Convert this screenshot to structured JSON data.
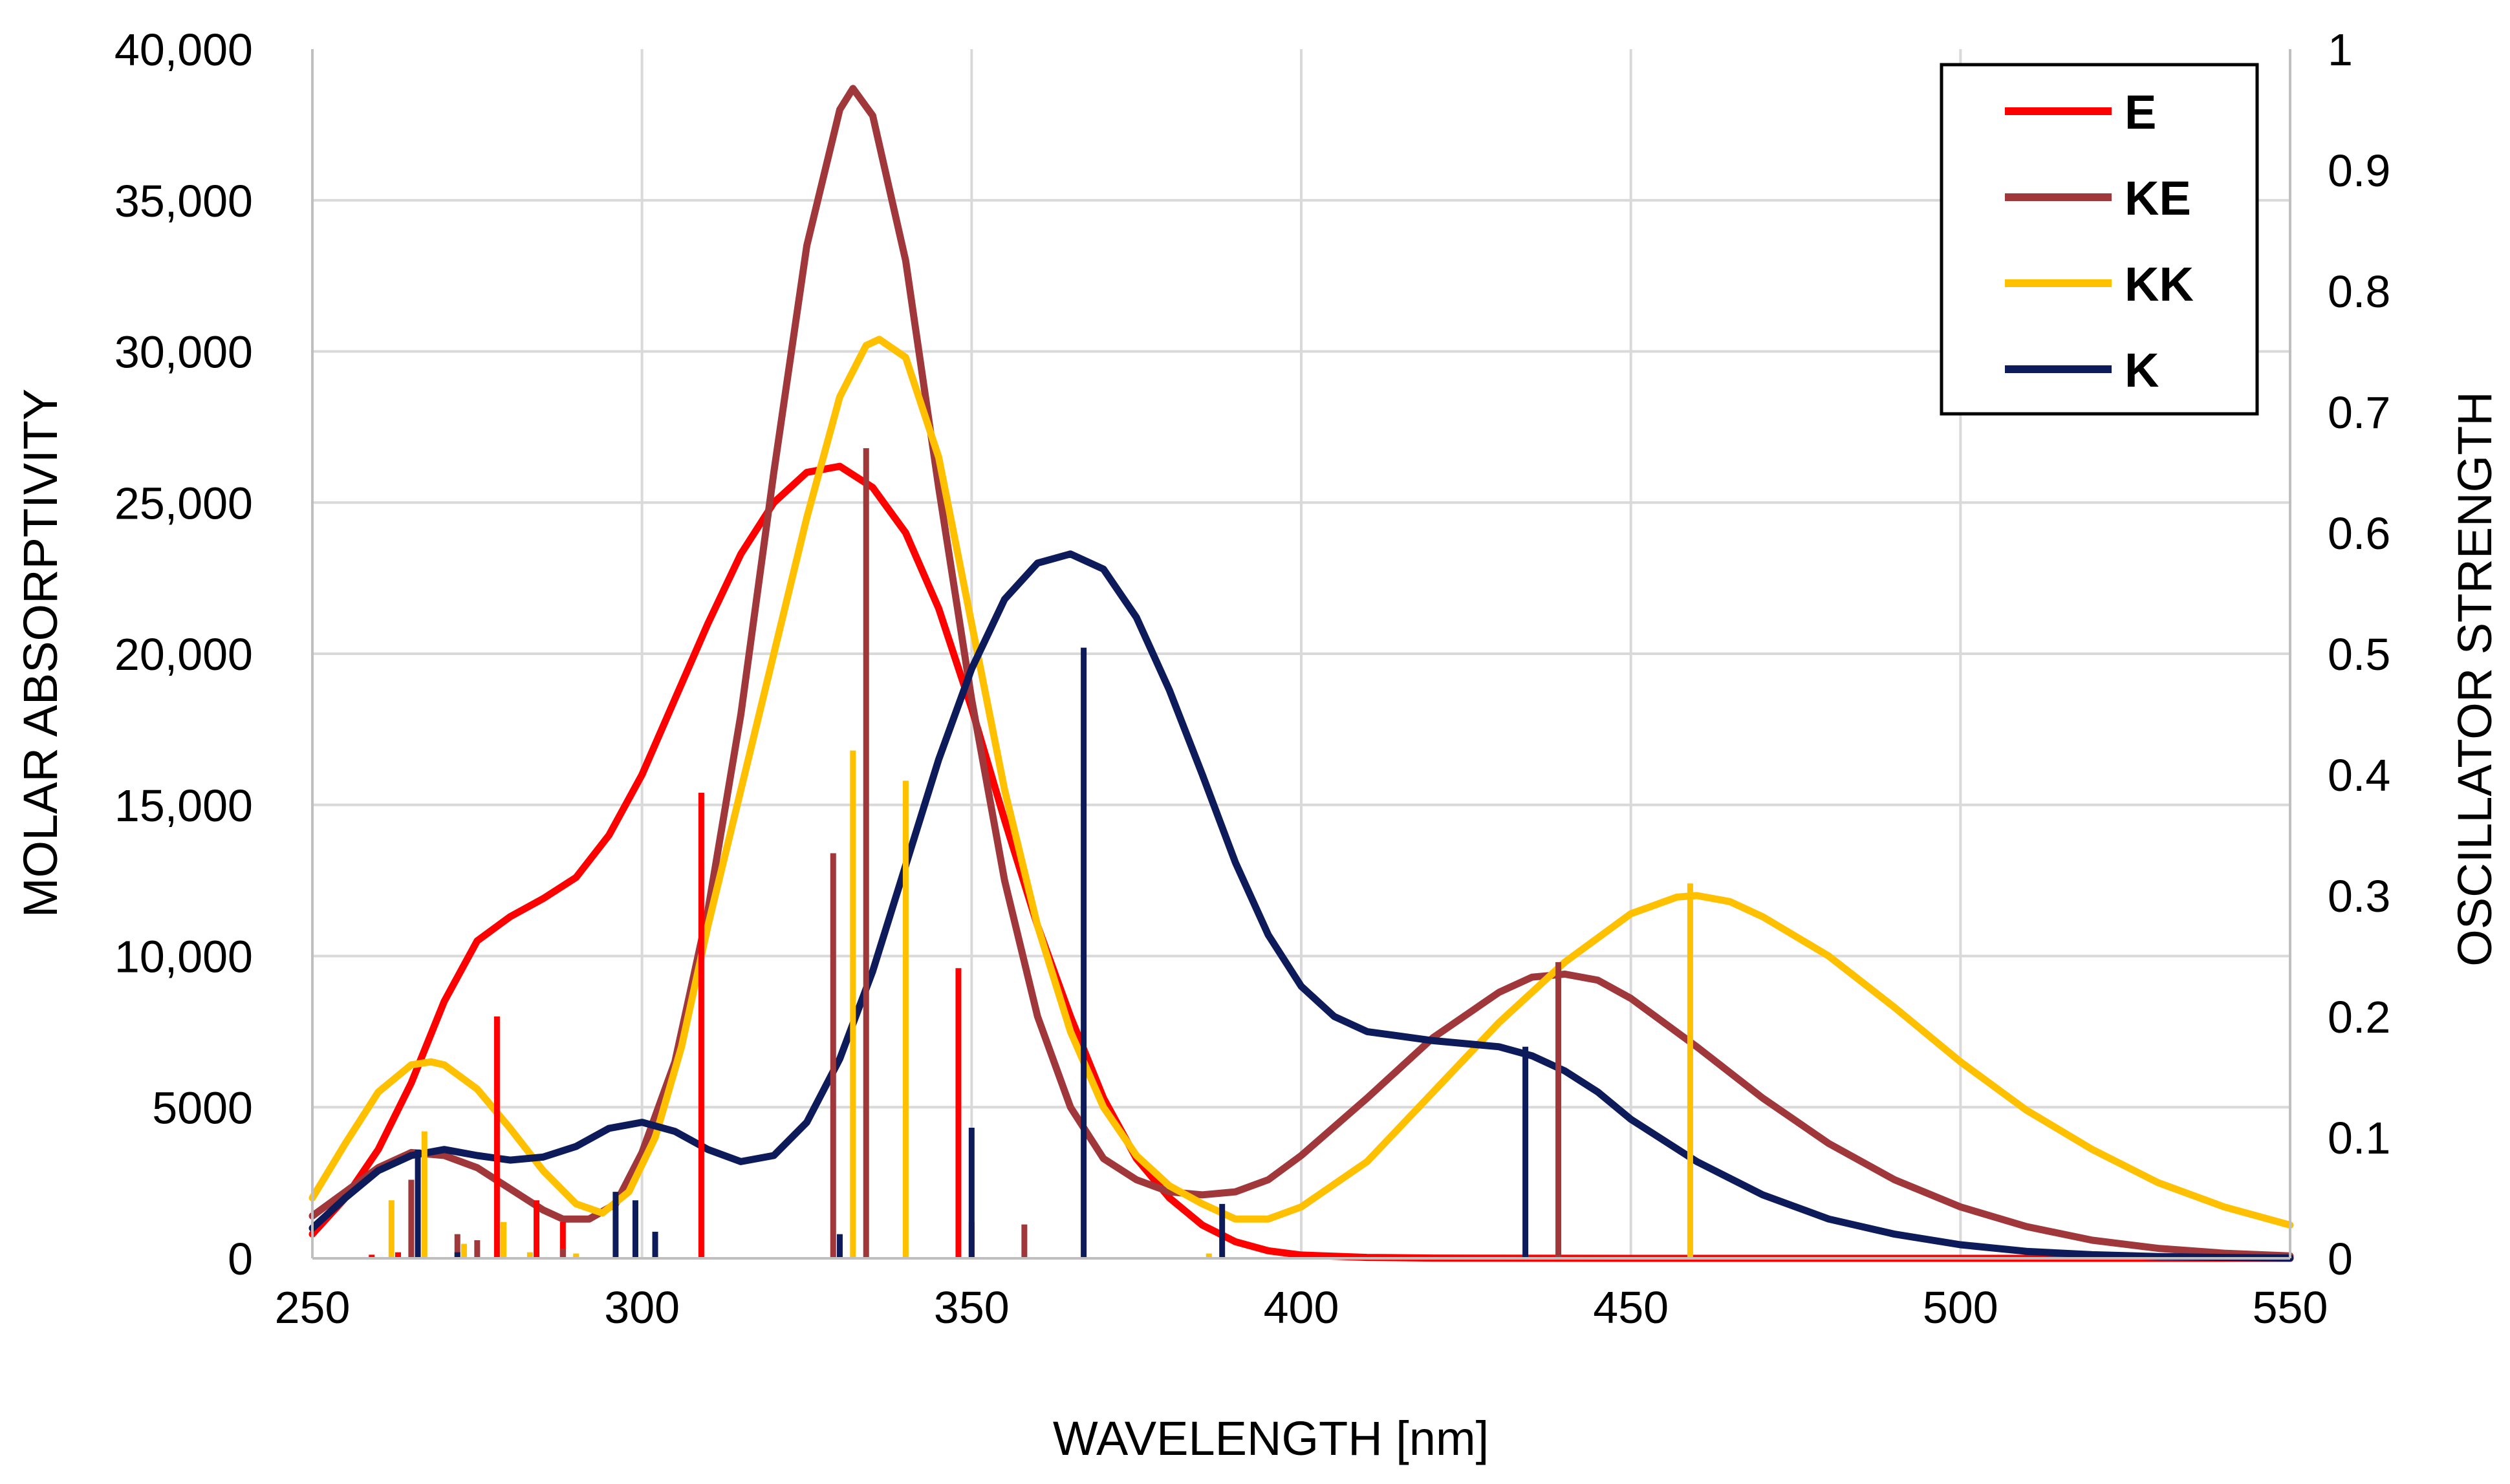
{
  "chart_data": {
    "type": "line",
    "title": "",
    "xlabel": "WAVELENGTH [nm]",
    "ylabel": "MOLAR ABSORPTIVITY",
    "y2label": "OSCILLATOR STRENGTH",
    "xlim": [
      250,
      550
    ],
    "ylim": [
      0,
      40000
    ],
    "y2lim": [
      0,
      1
    ],
    "x_ticks": [
      "250",
      "300",
      "350",
      "400",
      "450",
      "500",
      "550"
    ],
    "y_ticks": [
      "0",
      "5000",
      "10,000",
      "15,000",
      "20,000",
      "25,000",
      "30,000",
      "35,000",
      "40,000"
    ],
    "y2_ticks": [
      "0",
      "0.1",
      "0.2",
      "0.3",
      "0.4",
      "0.5",
      "0.6",
      "0.7",
      "0.8",
      "0.9",
      "1"
    ],
    "grid": true,
    "legend_position": "top-right",
    "series": [
      {
        "name": "E",
        "color": "#ff0000",
        "curve": [
          [
            250,
            800
          ],
          [
            255,
            2000
          ],
          [
            260,
            3600
          ],
          [
            265,
            5800
          ],
          [
            270,
            8500
          ],
          [
            275,
            10500
          ],
          [
            280,
            11300
          ],
          [
            285,
            11900
          ],
          [
            290,
            12600
          ],
          [
            295,
            14000
          ],
          [
            300,
            16000
          ],
          [
            305,
            18500
          ],
          [
            310,
            21000
          ],
          [
            315,
            23300
          ],
          [
            320,
            25000
          ],
          [
            325,
            26000
          ],
          [
            330,
            26200
          ],
          [
            335,
            25500
          ],
          [
            340,
            24000
          ],
          [
            345,
            21500
          ],
          [
            350,
            18200
          ],
          [
            355,
            14500
          ],
          [
            360,
            11000
          ],
          [
            365,
            8000
          ],
          [
            370,
            5300
          ],
          [
            375,
            3300
          ],
          [
            380,
            2000
          ],
          [
            385,
            1100
          ],
          [
            390,
            550
          ],
          [
            395,
            250
          ],
          [
            400,
            110
          ],
          [
            410,
            30
          ],
          [
            420,
            8
          ],
          [
            450,
            0
          ],
          [
            500,
            0
          ],
          [
            550,
            0
          ]
        ],
        "sticks": [
          [
            259,
            0.003
          ],
          [
            263,
            0.005
          ],
          [
            278,
            0.2
          ],
          [
            284,
            0.048
          ],
          [
            288,
            0.03
          ],
          [
            309,
            0.385
          ],
          [
            348,
            0.24
          ],
          [
            350,
            0.03
          ]
        ]
      },
      {
        "name": "KE",
        "color": "#a0373a",
        "curve": [
          [
            250,
            1400
          ],
          [
            255,
            2200
          ],
          [
            260,
            3000
          ],
          [
            265,
            3500
          ],
          [
            270,
            3400
          ],
          [
            275,
            3000
          ],
          [
            280,
            2300
          ],
          [
            285,
            1600
          ],
          [
            288,
            1300
          ],
          [
            292,
            1300
          ],
          [
            296,
            1800
          ],
          [
            300,
            3500
          ],
          [
            305,
            6500
          ],
          [
            310,
            11500
          ],
          [
            315,
            18000
          ],
          [
            320,
            26000
          ],
          [
            325,
            33500
          ],
          [
            330,
            38000
          ],
          [
            332,
            38700
          ],
          [
            335,
            37800
          ],
          [
            340,
            33000
          ],
          [
            345,
            25500
          ],
          [
            350,
            18500
          ],
          [
            355,
            12500
          ],
          [
            360,
            8000
          ],
          [
            365,
            5000
          ],
          [
            370,
            3300
          ],
          [
            375,
            2600
          ],
          [
            380,
            2200
          ],
          [
            385,
            2100
          ],
          [
            390,
            2200
          ],
          [
            395,
            2600
          ],
          [
            400,
            3400
          ],
          [
            410,
            5300
          ],
          [
            420,
            7300
          ],
          [
            430,
            8800
          ],
          [
            435,
            9300
          ],
          [
            440,
            9400
          ],
          [
            445,
            9200
          ],
          [
            450,
            8600
          ],
          [
            460,
            7000
          ],
          [
            470,
            5300
          ],
          [
            480,
            3800
          ],
          [
            490,
            2600
          ],
          [
            500,
            1700
          ],
          [
            510,
            1050
          ],
          [
            520,
            600
          ],
          [
            530,
            330
          ],
          [
            540,
            170
          ],
          [
            550,
            80
          ]
        ],
        "sticks": [
          [
            265,
            0.065
          ],
          [
            272,
            0.02
          ],
          [
            275,
            0.015
          ],
          [
            288,
            0.008
          ],
          [
            329,
            0.335
          ],
          [
            334,
            0.67
          ],
          [
            358,
            0.028
          ],
          [
            439,
            0.245
          ]
        ]
      },
      {
        "name": "KK",
        "color": "#ffc000",
        "curve": [
          [
            250,
            2000
          ],
          [
            255,
            3800
          ],
          [
            260,
            5500
          ],
          [
            265,
            6400
          ],
          [
            268,
            6500
          ],
          [
            270,
            6400
          ],
          [
            275,
            5600
          ],
          [
            280,
            4300
          ],
          [
            285,
            2900
          ],
          [
            290,
            1800
          ],
          [
            294,
            1500
          ],
          [
            298,
            2200
          ],
          [
            302,
            4000
          ],
          [
            306,
            7000
          ],
          [
            310,
            11000
          ],
          [
            315,
            15500
          ],
          [
            320,
            20000
          ],
          [
            325,
            24500
          ],
          [
            330,
            28500
          ],
          [
            334,
            30200
          ],
          [
            336,
            30400
          ],
          [
            340,
            29800
          ],
          [
            345,
            26500
          ],
          [
            350,
            21000
          ],
          [
            355,
            15500
          ],
          [
            360,
            11000
          ],
          [
            365,
            7500
          ],
          [
            370,
            5000
          ],
          [
            375,
            3400
          ],
          [
            380,
            2400
          ],
          [
            385,
            1800
          ],
          [
            390,
            1300
          ],
          [
            395,
            1300
          ],
          [
            400,
            1700
          ],
          [
            410,
            3200
          ],
          [
            420,
            5500
          ],
          [
            430,
            7800
          ],
          [
            440,
            9800
          ],
          [
            450,
            11400
          ],
          [
            457,
            11950
          ],
          [
            460,
            12000
          ],
          [
            465,
            11800
          ],
          [
            470,
            11300
          ],
          [
            480,
            10000
          ],
          [
            490,
            8300
          ],
          [
            500,
            6500
          ],
          [
            510,
            4900
          ],
          [
            520,
            3600
          ],
          [
            530,
            2500
          ],
          [
            540,
            1700
          ],
          [
            550,
            1100
          ]
        ],
        "sticks": [
          [
            262,
            0.048
          ],
          [
            267,
            0.105
          ],
          [
            273,
            0.012
          ],
          [
            279,
            0.03
          ],
          [
            283,
            0.005
          ],
          [
            290,
            0.004
          ],
          [
            332,
            0.42
          ],
          [
            340,
            0.395
          ],
          [
            386,
            0.004
          ],
          [
            459,
            0.31
          ]
        ]
      },
      {
        "name": "K",
        "color": "#0d1b5a",
        "curve": [
          [
            250,
            1000
          ],
          [
            255,
            2000
          ],
          [
            260,
            2900
          ],
          [
            265,
            3400
          ],
          [
            270,
            3600
          ],
          [
            275,
            3400
          ],
          [
            280,
            3250
          ],
          [
            285,
            3350
          ],
          [
            290,
            3700
          ],
          [
            295,
            4300
          ],
          [
            300,
            4500
          ],
          [
            305,
            4200
          ],
          [
            310,
            3600
          ],
          [
            315,
            3200
          ],
          [
            320,
            3400
          ],
          [
            325,
            4500
          ],
          [
            330,
            6600
          ],
          [
            335,
            9500
          ],
          [
            340,
            13000
          ],
          [
            345,
            16500
          ],
          [
            350,
            19500
          ],
          [
            355,
            21800
          ],
          [
            360,
            23000
          ],
          [
            365,
            23300
          ],
          [
            370,
            22800
          ],
          [
            375,
            21200
          ],
          [
            380,
            18800
          ],
          [
            385,
            16000
          ],
          [
            390,
            13100
          ],
          [
            395,
            10700
          ],
          [
            400,
            9000
          ],
          [
            405,
            8000
          ],
          [
            410,
            7500
          ],
          [
            420,
            7200
          ],
          [
            430,
            7000
          ],
          [
            435,
            6700
          ],
          [
            440,
            6200
          ],
          [
            445,
            5500
          ],
          [
            450,
            4600
          ],
          [
            460,
            3200
          ],
          [
            470,
            2100
          ],
          [
            480,
            1300
          ],
          [
            490,
            800
          ],
          [
            500,
            450
          ],
          [
            510,
            230
          ],
          [
            520,
            120
          ],
          [
            530,
            60
          ],
          [
            540,
            30
          ],
          [
            550,
            10
          ]
        ],
        "sticks": [
          [
            266,
            0.09
          ],
          [
            272,
            0.005
          ],
          [
            296,
            0.055
          ],
          [
            299,
            0.048
          ],
          [
            302,
            0.022
          ],
          [
            330,
            0.02
          ],
          [
            350,
            0.108
          ],
          [
            367,
            0.505
          ],
          [
            388,
            0.045
          ],
          [
            434,
            0.175
          ]
        ]
      }
    ]
  }
}
